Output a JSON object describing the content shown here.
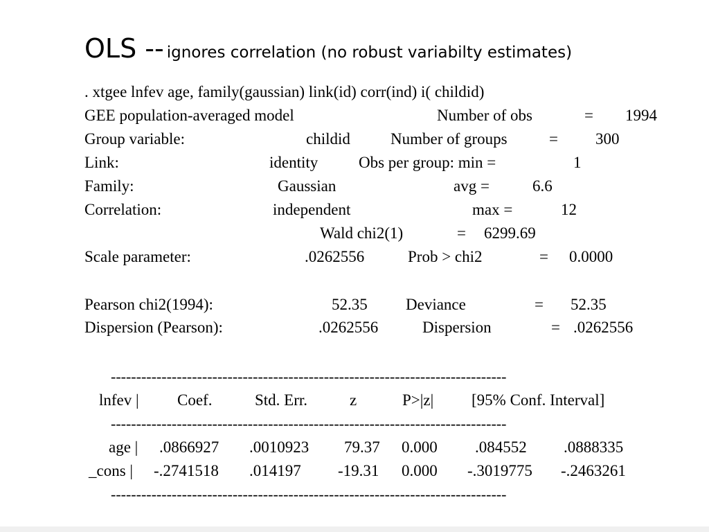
{
  "title": {
    "main": "OLS --",
    "sub": "ignores correlation (no robust variabilty estimates)"
  },
  "command": ". xtgee  lnfev age, family(gaussian) link(id) corr(ind) i( childid)",
  "header_rows": [
    [
      "GEE population-averaged model",
      "Number of obs",
      "=",
      "1994"
    ],
    [
      "Group variable:",
      "childid",
      "Number of groups",
      "=",
      "300"
    ],
    [
      "Link:",
      "identity",
      "Obs per group: min =",
      "1"
    ],
    [
      "Family:",
      "Gaussian",
      "avg =",
      "6.6"
    ],
    [
      "Correlation:",
      "independent",
      "max =",
      "12"
    ],
    [
      "Wald chi2(1)",
      "=",
      "6299.69"
    ],
    [
      "Scale parameter:",
      ".0262556",
      "Prob > chi2",
      "=",
      "0.0000"
    ],
    [
      "Pearson chi2(1994):",
      "52.35",
      "Deviance",
      "=",
      "52.35"
    ],
    [
      "Dispersion (Pearson):",
      ".0262556",
      "Dispersion",
      "=",
      ".0262556"
    ]
  ],
  "table": {
    "separator": "------------------------------------------------------------------------------",
    "header": [
      "lnfev |",
      "Coef.",
      "Std. Err.",
      "z",
      "P>|z|",
      "[95% Conf. Interval]"
    ],
    "rows": [
      [
        "age |",
        ".0866927",
        ".0010923",
        "79.37",
        "0.000",
        ".084552",
        ".0888335"
      ],
      [
        "_cons |",
        "-.2741518",
        ".014197",
        "-19.31",
        "0.000",
        "-.3019775",
        "-.2463261"
      ]
    ]
  }
}
